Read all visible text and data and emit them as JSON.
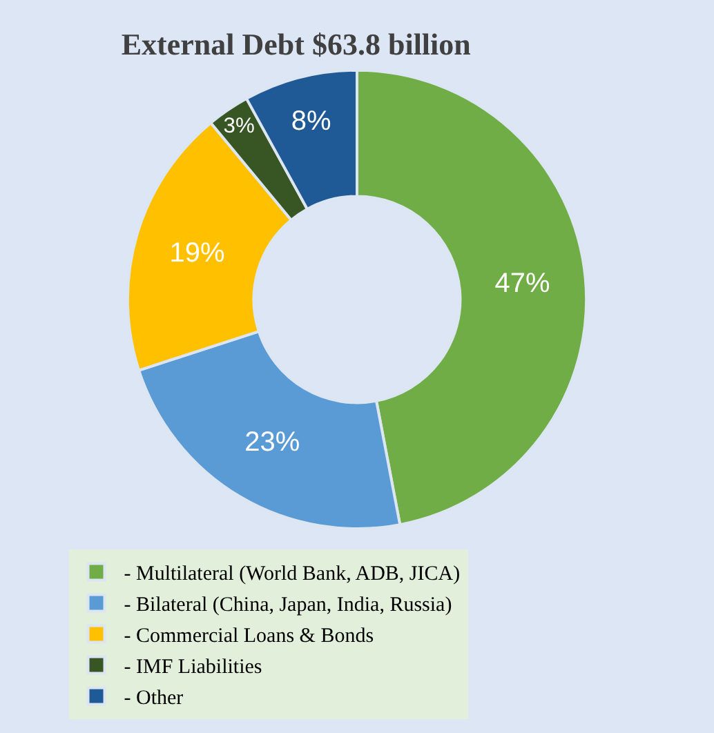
{
  "chart_data": {
    "type": "donut",
    "title": "External Debt $63.8 billion",
    "categories": [
      "- Multilateral (World Bank, ADB, JICA)",
      "- Bilateral (China, Japan, India, Russia)",
      "- Commercial Loans & Bonds",
      "- IMF Liabilities",
      "- Other"
    ],
    "values": [
      47,
      23,
      19,
      3,
      8
    ],
    "value_labels": [
      "47%",
      "23%",
      "19%",
      "3%",
      "8%"
    ],
    "colors": [
      "#70ad47",
      "#5b9bd5",
      "#ffc000",
      "#375623",
      "#1f5a96"
    ],
    "legend": "bottom"
  }
}
